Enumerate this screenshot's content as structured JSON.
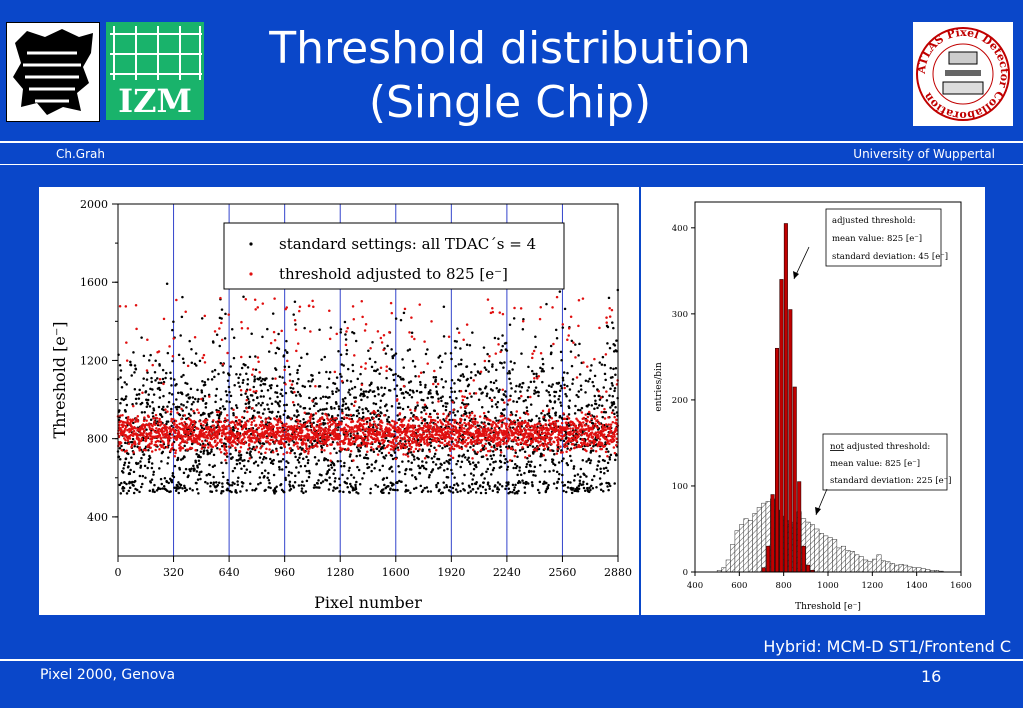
{
  "header": {
    "title_line1": "Threshold distribution",
    "title_line2": "(Single Chip)",
    "author": "Ch.Grah",
    "university": "University of Wuppertal",
    "logos": [
      "wuppertal-logo",
      "izm-logo",
      "atlas-pixel-logo"
    ],
    "izm_text": "IZM",
    "atlas_text": "ATLAS Pixel Detector Collaboration"
  },
  "footer": {
    "left": "Pixel 2000, Genova",
    "page": "16",
    "hybrid": "Hybrid: MCM-D ST1/Frontend C"
  },
  "colors": {
    "background": "#0a47c9",
    "standard_points": "#000000",
    "adjusted_points": "#e01010",
    "adjusted_histogram": "#c00000",
    "divider_lines": "#3344cc"
  },
  "chart_data": [
    {
      "type": "scatter",
      "xlabel": "Pixel number",
      "ylabel": "Threshold [e⁻]",
      "xlim": [
        0,
        2880
      ],
      "ylim": [
        200,
        2000
      ],
      "xticks": [
        0,
        320,
        640,
        960,
        1280,
        1600,
        1920,
        2240,
        2560,
        2880
      ],
      "yticks": [
        400,
        800,
        1200,
        1600,
        2000
      ],
      "column_dividers": [
        320,
        640,
        960,
        1280,
        1600,
        1920,
        2240,
        2560
      ],
      "legend_position": "top-center",
      "series": [
        {
          "name": "standard settings: all TDAC´s = 4",
          "color": "#000000",
          "mean": 825,
          "std": 225,
          "points": 2880
        },
        {
          "name": "threshold adjusted to 825 [e⁻]",
          "color": "#e01010",
          "mean": 825,
          "std": 45,
          "points": 2880
        }
      ]
    },
    {
      "type": "bar",
      "xlabel": "Threshold [e⁻]",
      "ylabel": "entries/bin",
      "xlim": [
        400,
        1600
      ],
      "ylim": [
        0,
        430
      ],
      "xticks": [
        400,
        600,
        800,
        1000,
        1200,
        1400,
        1600
      ],
      "yticks": [
        0,
        100,
        200,
        300,
        400
      ],
      "bin_width": 20,
      "annotation_adjusted": {
        "line1": "adjusted threshold:",
        "line2": "mean value: 825 [e⁻]",
        "line3": "standard deviation: 45 [e⁻]"
      },
      "annotation_not_adjusted": {
        "line1_underlined": "not",
        "line1_rest": " adjusted threshold:",
        "line2": "mean value: 825 [e⁻]",
        "line3": "standard deviation: 225 [e⁻]"
      },
      "series": [
        {
          "name": "adjusted threshold",
          "color": "#c00000",
          "bins_start": [
            700,
            720,
            740,
            760,
            780,
            800,
            820,
            840,
            860,
            880,
            900,
            920
          ],
          "values": [
            5,
            30,
            90,
            260,
            340,
            405,
            305,
            215,
            105,
            30,
            8,
            2
          ]
        },
        {
          "name": "not adjusted threshold",
          "pattern": "hatched",
          "bins_start": [
            500,
            520,
            540,
            560,
            580,
            600,
            620,
            640,
            660,
            680,
            700,
            720,
            740,
            760,
            780,
            800,
            820,
            840,
            860,
            880,
            900,
            920,
            940,
            960,
            980,
            1000,
            1020,
            1040,
            1060,
            1080,
            1100,
            1120,
            1140,
            1160,
            1180,
            1200,
            1220,
            1240,
            1260,
            1280,
            1300,
            1320,
            1340,
            1360,
            1380,
            1400,
            1420,
            1440,
            1460,
            1480,
            1500
          ],
          "values": [
            2,
            5,
            14,
            32,
            48,
            55,
            62,
            60,
            68,
            75,
            80,
            82,
            85,
            72,
            65,
            60,
            55,
            58,
            70,
            62,
            58,
            55,
            50,
            45,
            42,
            40,
            38,
            28,
            30,
            25,
            24,
            20,
            18,
            14,
            12,
            15,
            20,
            13,
            12,
            10,
            8,
            9,
            8,
            6,
            5,
            5,
            4,
            3,
            2,
            2,
            1
          ]
        }
      ]
    }
  ]
}
